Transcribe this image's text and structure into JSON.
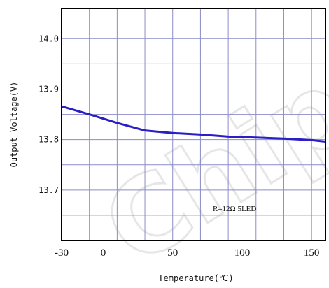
{
  "chart_data": {
    "type": "line",
    "xlabel": "Temperature(℃)",
    "ylabel": "Output Voltage(V)",
    "xlim": [
      -30,
      160
    ],
    "ylim": [
      13.6,
      14.06
    ],
    "x_ticks": [
      {
        "value": -30,
        "label": "-30"
      },
      {
        "value": 0,
        "label": "0"
      },
      {
        "value": 50,
        "label": "50"
      },
      {
        "value": 100,
        "label": "100"
      },
      {
        "value": 150,
        "label": "150"
      }
    ],
    "y_ticks": [
      {
        "value": 14.0,
        "label": "14.0"
      },
      {
        "value": 13.9,
        "label": "13.9"
      },
      {
        "value": 13.8,
        "label": "13.8"
      },
      {
        "value": 13.7,
        "label": "13.7"
      }
    ],
    "grid": true,
    "x_gridlines": [
      -30,
      -10,
      10,
      30,
      50,
      70,
      90,
      110,
      130,
      150
    ],
    "y_gridlines": [
      14.0,
      13.95,
      13.9,
      13.85,
      13.8,
      13.75,
      13.7,
      13.65
    ],
    "series": [
      {
        "color": "#2a1fc4",
        "x": [
          -30,
          -10,
          10,
          30,
          50,
          70,
          90,
          110,
          130,
          150,
          160
        ],
        "y": [
          13.866,
          13.85,
          13.833,
          13.818,
          13.813,
          13.81,
          13.806,
          13.804,
          13.802,
          13.799,
          13.796
        ]
      }
    ],
    "annotation": "R=12Ω   5LED"
  },
  "watermark": "Chipsea"
}
